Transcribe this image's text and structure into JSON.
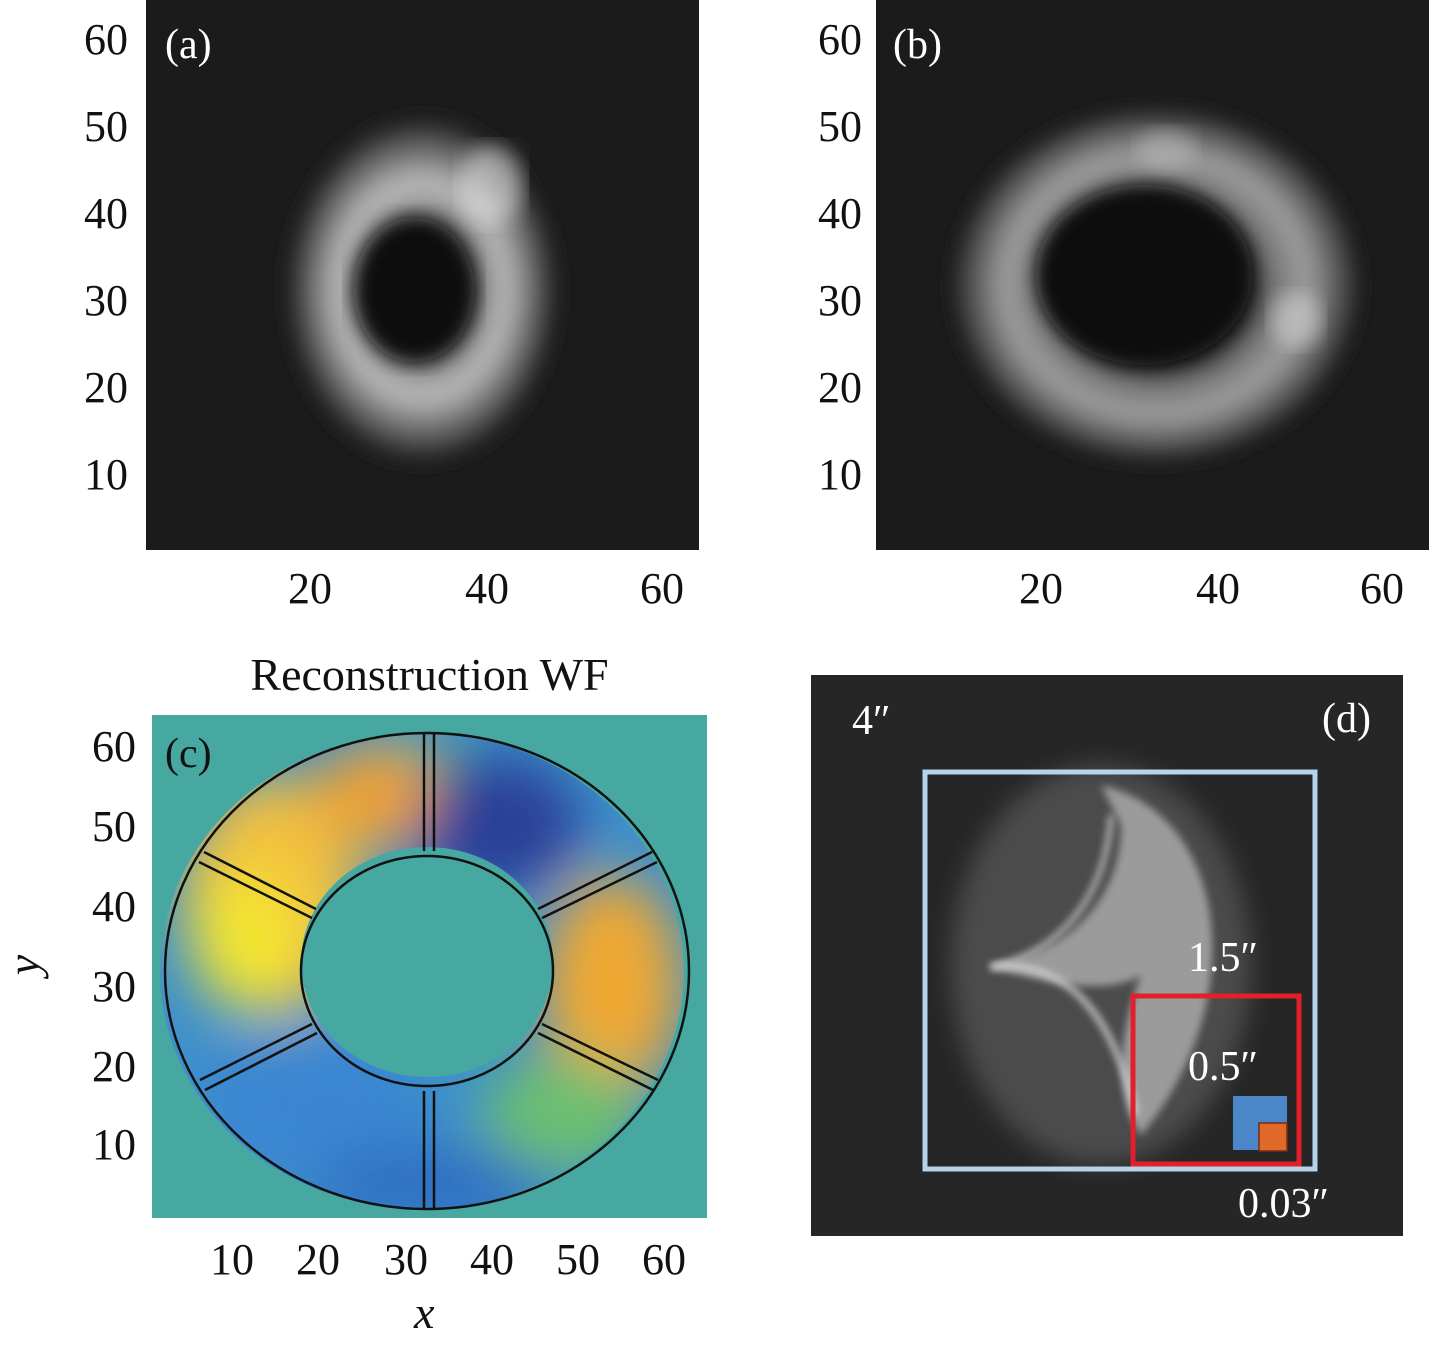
{
  "panels": {
    "a": {
      "label": "(a)",
      "y_ticks": [
        "60",
        "50",
        "40",
        "30",
        "20",
        "10"
      ],
      "x_ticks": [
        "20",
        "40",
        "60"
      ]
    },
    "b": {
      "label": "(b)",
      "y_ticks": [
        "60",
        "50",
        "40",
        "30",
        "20",
        "10"
      ],
      "x_ticks": [
        "20",
        "40",
        "60"
      ]
    },
    "c": {
      "label": "(c)",
      "title": "Reconstruction WF",
      "y_ticks": [
        "60",
        "50",
        "40",
        "30",
        "20",
        "10"
      ],
      "x_ticks": [
        "10",
        "20",
        "30",
        "40",
        "50",
        "60"
      ],
      "xlabel": "x",
      "ylabel": "y"
    },
    "d": {
      "label": "(d)",
      "fov_outer": "4″",
      "fov_blue_box": "1.5″",
      "fov_red_box": "0.5″",
      "fov_small": "0.03″",
      "colors": {
        "blue_box": "#b7d3ea",
        "red_box": "#e0202a",
        "blue_square": "#4a86c8",
        "orange_square": "#e06a2a"
      }
    }
  }
}
